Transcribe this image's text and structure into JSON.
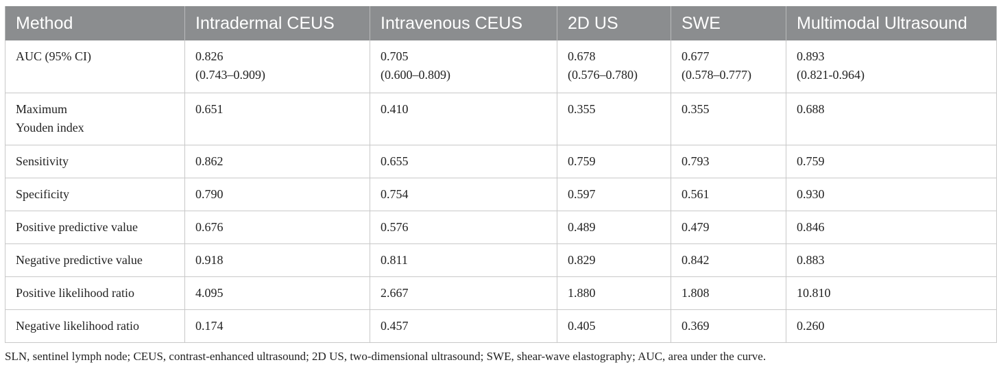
{
  "table": {
    "headers": [
      "Method",
      "Intradermal CEUS",
      "Intravenous CEUS",
      "2D US",
      "SWE",
      "Multimodal Ultrasound"
    ],
    "rows": [
      {
        "label_lines": [
          "AUC (95% CI)"
        ],
        "cells": [
          [
            "0.826",
            "(0.743–0.909)"
          ],
          [
            "0.705",
            "(0.600–0.809)"
          ],
          [
            "0.678",
            "(0.576–0.780)"
          ],
          [
            "0.677",
            "(0.578–0.777)"
          ],
          [
            "0.893",
            "(0.821-0.964)"
          ]
        ]
      },
      {
        "label_lines": [
          "Maximum",
          "Youden index"
        ],
        "cells": [
          [
            "0.651"
          ],
          [
            "0.410"
          ],
          [
            "0.355"
          ],
          [
            "0.355"
          ],
          [
            "0.688"
          ]
        ]
      },
      {
        "label_lines": [
          "Sensitivity"
        ],
        "cells": [
          [
            "0.862"
          ],
          [
            "0.655"
          ],
          [
            "0.759"
          ],
          [
            "0.793"
          ],
          [
            "0.759"
          ]
        ]
      },
      {
        "label_lines": [
          "Specificity"
        ],
        "cells": [
          [
            "0.790"
          ],
          [
            "0.754"
          ],
          [
            "0.597"
          ],
          [
            "0.561"
          ],
          [
            "0.930"
          ]
        ]
      },
      {
        "label_lines": [
          "Positive predictive value"
        ],
        "cells": [
          [
            "0.676"
          ],
          [
            "0.576"
          ],
          [
            "0.489"
          ],
          [
            "0.479"
          ],
          [
            "0.846"
          ]
        ]
      },
      {
        "label_lines": [
          "Negative predictive value"
        ],
        "cells": [
          [
            "0.918"
          ],
          [
            "0.811"
          ],
          [
            "0.829"
          ],
          [
            "0.842"
          ],
          [
            "0.883"
          ]
        ]
      },
      {
        "label_lines": [
          "Positive likelihood ratio"
        ],
        "cells": [
          [
            "4.095"
          ],
          [
            "2.667"
          ],
          [
            "1.880"
          ],
          [
            "1.808"
          ],
          [
            "10.810"
          ]
        ]
      },
      {
        "label_lines": [
          "Negative likelihood ratio"
        ],
        "cells": [
          [
            "0.174"
          ],
          [
            "0.457"
          ],
          [
            "0.405"
          ],
          [
            "0.369"
          ],
          [
            "0.260"
          ]
        ]
      }
    ]
  },
  "footnote": "SLN, sentinel lymph node; CEUS, contrast-enhanced ultrasound; 2D US, two-dimensional ultrasound; SWE, shear-wave elastography; AUC, area under the curve.",
  "colors": {
    "header_background": "#8b8d8f",
    "header_text": "#ffffff",
    "grid_line": "#c8c8c8"
  }
}
